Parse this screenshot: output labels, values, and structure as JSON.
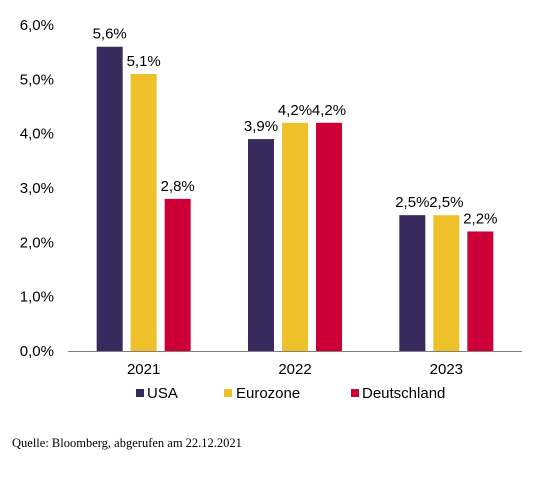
{
  "chart_data": {
    "type": "bar",
    "title": "",
    "xlabel": "",
    "ylabel": "",
    "categories": [
      "2021",
      "2022",
      "2023"
    ],
    "series": [
      {
        "name": "USA",
        "values": [
          5.6,
          3.9,
          2.5
        ],
        "labels": [
          "5,6%",
          "3,9%",
          "2,5%"
        ],
        "color": "#372a5c"
      },
      {
        "name": "Eurozone",
        "values": [
          5.1,
          4.2,
          2.5
        ],
        "labels": [
          "5,1%",
          "4,2%",
          "2,5%"
        ],
        "color": "#eec12a"
      },
      {
        "name": "Deutschland",
        "values": [
          2.8,
          4.2,
          2.2
        ],
        "labels": [
          "2,8%",
          "4,2%",
          "2,2%"
        ],
        "color": "#cc0036"
      }
    ],
    "ylim": [
      0,
      6
    ],
    "yticks": [
      0,
      1,
      2,
      3,
      4,
      5,
      6
    ],
    "ytick_labels": [
      "0,0%",
      "1,0%",
      "2,0%",
      "3,0%",
      "4,0%",
      "5,0%",
      "6,0%"
    ],
    "grid": false,
    "legend_position": "bottom"
  },
  "source_note": "Quelle: Bloomberg, abgerufen am 22.12.2021"
}
